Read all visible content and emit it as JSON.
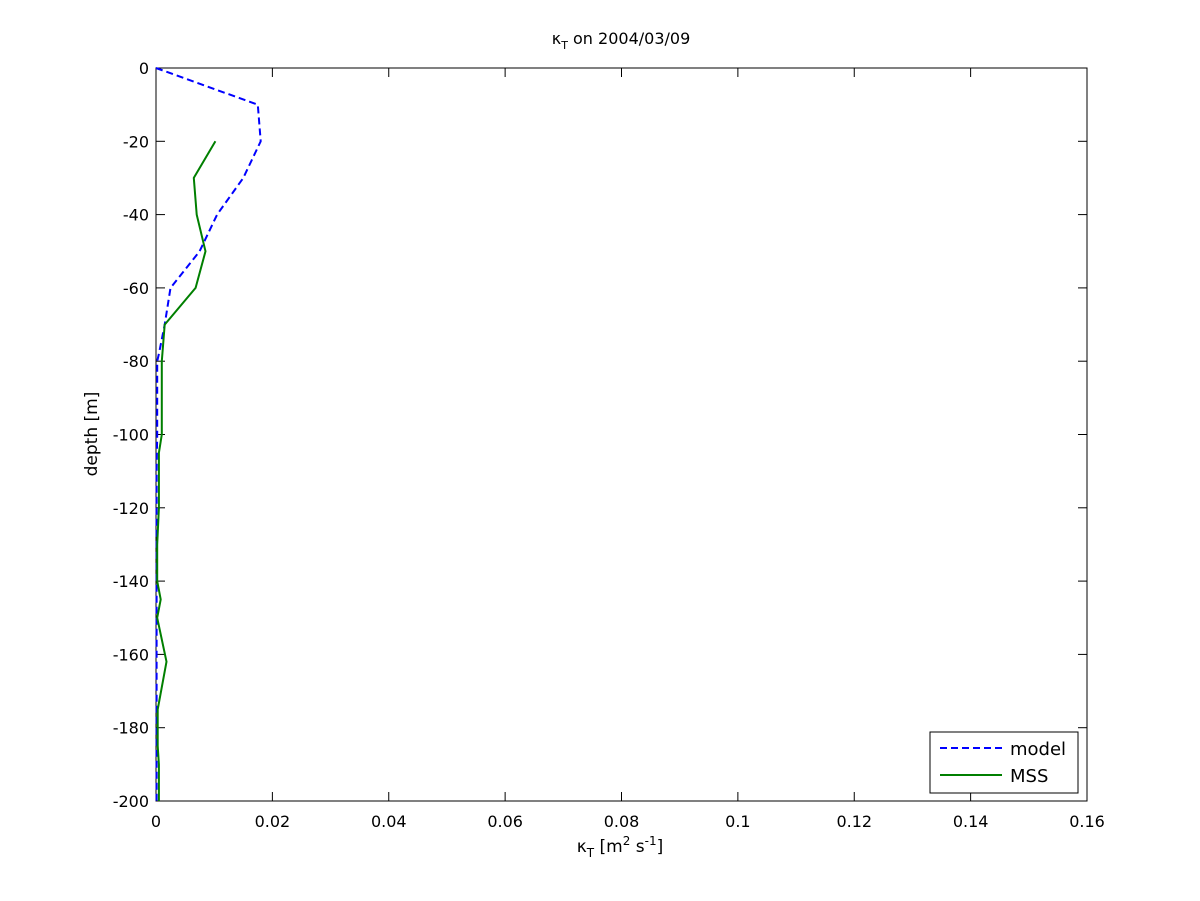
{
  "chart_data": {
    "type": "line",
    "title": {
      "kappa": "κ",
      "sub": "T",
      "rest": " on 2004/03/09"
    },
    "xlabel": {
      "kappa": "κ",
      "sub": "T",
      "open": " [m",
      "sup1": "2",
      "mid": " s",
      "sup2": "-1",
      "close": "]"
    },
    "ylabel": "depth [m]",
    "xlim": [
      0,
      0.16
    ],
    "ylim": [
      -200,
      0
    ],
    "xticks": [
      0,
      0.02,
      0.04,
      0.06,
      0.08,
      0.1,
      0.12,
      0.14,
      0.16
    ],
    "xtick_labels": [
      "0",
      "0.02",
      "0.04",
      "0.06",
      "0.08",
      "0.1",
      "0.12",
      "0.14",
      "0.16"
    ],
    "yticks": [
      0,
      -20,
      -40,
      -60,
      -80,
      -100,
      -120,
      -140,
      -160,
      -180,
      -200
    ],
    "ytick_labels": [
      "0",
      "-20",
      "-40",
      "-60",
      "-80",
      "-100",
      "-120",
      "-140",
      "-160",
      "-180",
      "-200"
    ],
    "grid": false,
    "legend_position": "bottom-right",
    "series": [
      {
        "name": "model",
        "color": "#0000ff",
        "dash": "dashed",
        "x": [
          0,
          0.0175,
          0.018,
          0.015,
          0.0105,
          0.0075,
          0.005,
          0.0025,
          0.0015,
          0.0005,
          0.0002,
          0.0002,
          0.0001,
          0.0001,
          0.0001,
          0.0001,
          0.0001,
          0.0001,
          0.0001,
          0.0001,
          0.0001
        ],
        "y": [
          0,
          -10,
          -20,
          -30,
          -40,
          -50,
          -55,
          -60,
          -70,
          -78,
          -80,
          -100,
          -110,
          -130,
          -140,
          -150,
          -160,
          -170,
          -180,
          -190,
          -200
        ]
      },
      {
        "name": "MSS",
        "color": "#007f00",
        "dash": "solid",
        "x": [
          0.0102,
          0.0065,
          0.007,
          0.0085,
          0.0068,
          0.0015,
          0.001,
          0.001,
          0.0005,
          0.0005,
          0.0002,
          0.0002,
          0.0008,
          0.0002,
          0.0018,
          0.0003,
          0.0003,
          0.0003,
          0.0005,
          0.0005
        ],
        "y": [
          -20,
          -30,
          -40,
          -50,
          -60,
          -70,
          -80,
          -100,
          -105,
          -120,
          -130,
          -140,
          -145,
          -150,
          -162,
          -175,
          -180,
          -185,
          -190,
          -200
        ]
      }
    ]
  }
}
